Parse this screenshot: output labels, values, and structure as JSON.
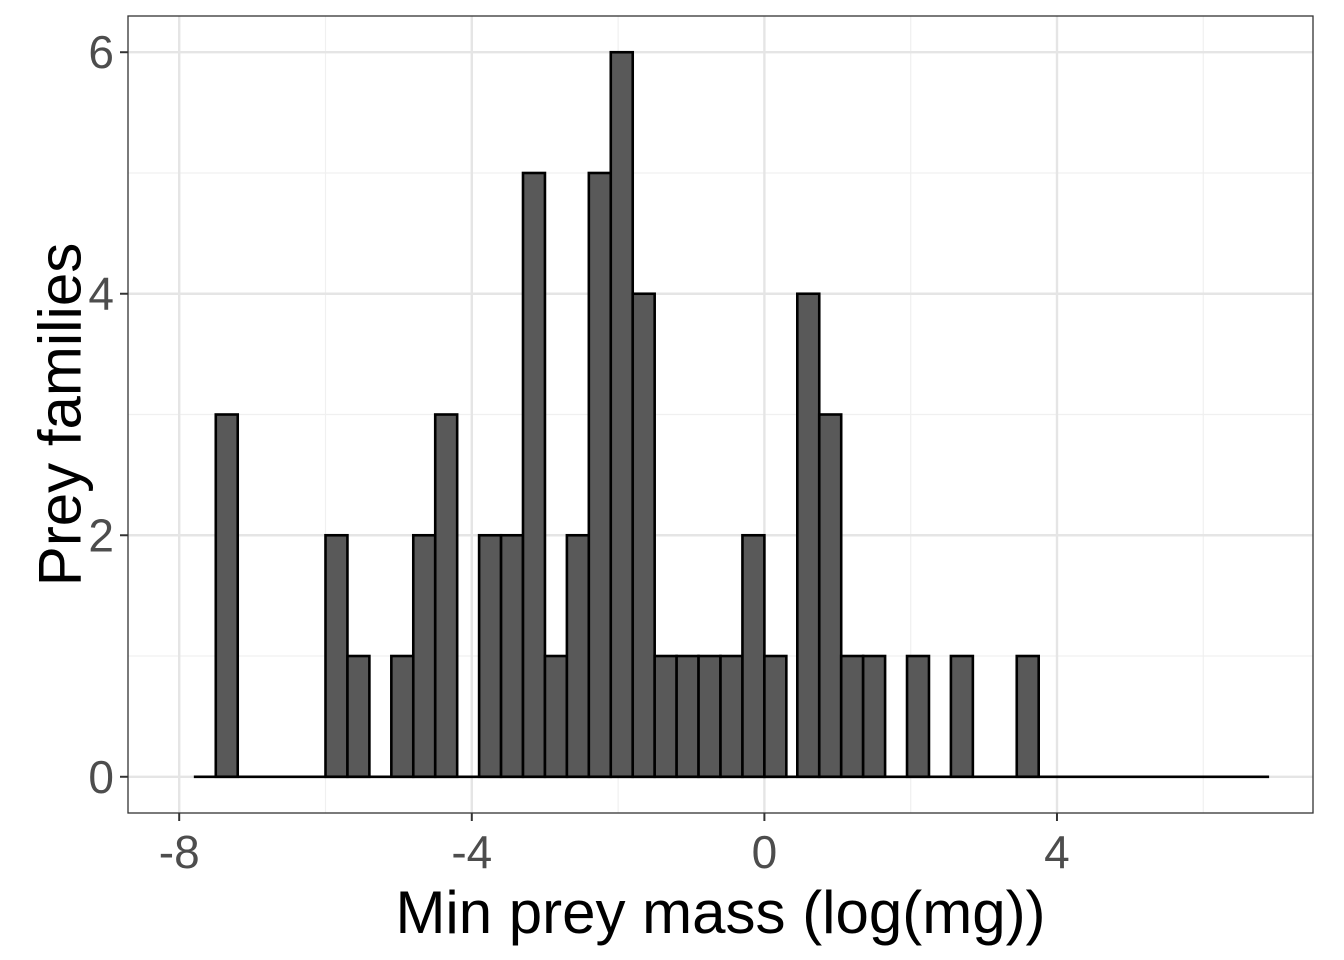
{
  "chart_data": {
    "type": "bar",
    "title": "",
    "xlabel": "Min prey mass (log(mg))",
    "ylabel": "Prey families",
    "xlim": [
      -8.7,
      7.5
    ],
    "ylim": [
      -0.3,
      6.3
    ],
    "bin_width": 0.3,
    "bin_range": [
      -7.8,
      6.9
    ],
    "x_ticks": [
      {
        "value": -8,
        "label": "-8"
      },
      {
        "value": -4,
        "label": "-4"
      },
      {
        "value": 0,
        "label": "0"
      },
      {
        "value": 4,
        "label": "4"
      }
    ],
    "y_ticks": [
      {
        "value": 0,
        "label": "0"
      },
      {
        "value": 2,
        "label": "2"
      },
      {
        "value": 4,
        "label": "4"
      },
      {
        "value": 6,
        "label": "6"
      }
    ],
    "bins": [
      {
        "x0": -7.5,
        "count": 3
      },
      {
        "x0": -6.0,
        "count": 2
      },
      {
        "x0": -5.7,
        "count": 1
      },
      {
        "x0": -5.1,
        "count": 1
      },
      {
        "x0": -4.8,
        "count": 2
      },
      {
        "x0": -4.5,
        "count": 3
      },
      {
        "x0": -3.9,
        "count": 2
      },
      {
        "x0": -3.6,
        "count": 2
      },
      {
        "x0": -3.3,
        "count": 5
      },
      {
        "x0": -3.0,
        "count": 1
      },
      {
        "x0": -2.7,
        "count": 2
      },
      {
        "x0": -2.4,
        "count": 5
      },
      {
        "x0": -2.1,
        "count": 6
      },
      {
        "x0": -1.8,
        "count": 4
      },
      {
        "x0": -1.5,
        "count": 1
      },
      {
        "x0": -1.2,
        "count": 1
      },
      {
        "x0": -0.9,
        "count": 1
      },
      {
        "x0": -0.6,
        "count": 1
      },
      {
        "x0": -0.3,
        "count": 2
      },
      {
        "x0": 0.0,
        "count": 1
      },
      {
        "x0": 0.45,
        "count": 4
      },
      {
        "x0": 0.75,
        "count": 3
      },
      {
        "x0": 1.05,
        "count": 1
      },
      {
        "x0": 1.35,
        "count": 1
      },
      {
        "x0": 1.95,
        "count": 1
      },
      {
        "x0": 2.55,
        "count": 1
      },
      {
        "x0": 3.45,
        "count": 1
      }
    ],
    "colors": {
      "bar_fill": "#595959",
      "bar_stroke": "#000000",
      "grid_major": "#e5e5e5",
      "grid_minor": "#f0f0f0",
      "panel_border": "#333333"
    }
  }
}
